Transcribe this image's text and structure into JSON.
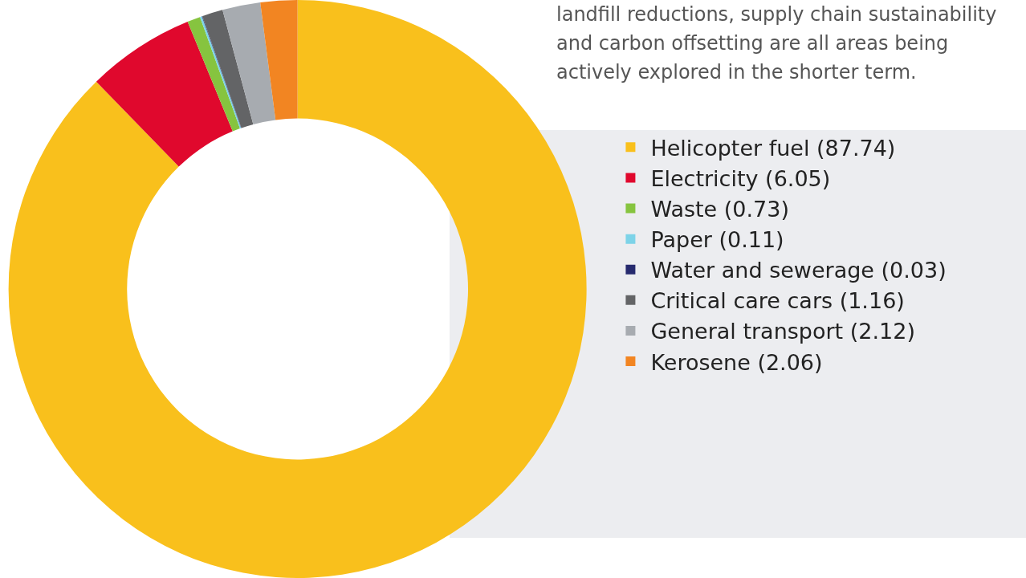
{
  "chart_data": {
    "type": "donut",
    "categories": [
      "Helicopter fuel (87.74)",
      "Electricity (6.05)",
      "Waste (0.73)",
      "Paper (0.11)",
      "Water and sewerage (0.03)",
      "Critical care cars (1.16)",
      "General transport (2.12)",
      "Kerosene (2.06)"
    ],
    "values": [
      87.74,
      6.05,
      0.73,
      0.11,
      0.03,
      1.16,
      2.12,
      2.06
    ],
    "colors": [
      "#f9c01c",
      "#e0082d",
      "#86c43f",
      "#7dd3e8",
      "#262a6e",
      "#636466",
      "#a7abb0",
      "#f28522"
    ],
    "legend": "right",
    "annotations": [
      "landfill reductions, supply chain sustainability and carbon offsetting are all areas being actively explored in the shorter term."
    ]
  }
}
